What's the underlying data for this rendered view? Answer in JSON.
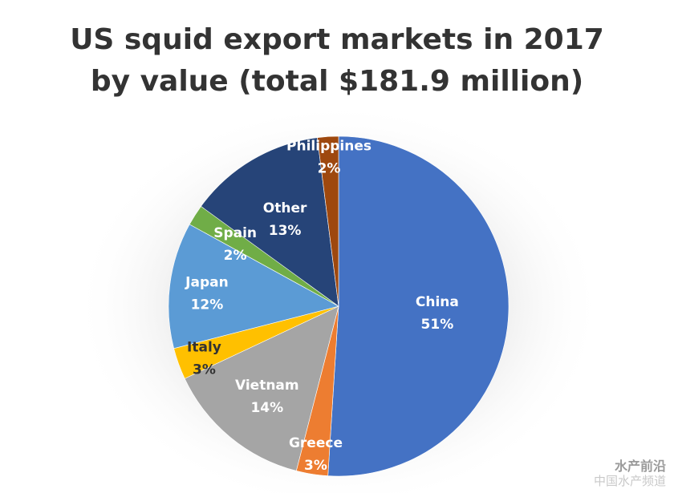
{
  "chart_data": {
    "type": "pie",
    "title_lines": [
      "US squid export markets in 2017",
      "by value (total $181.9 million)"
    ],
    "start_angle_deg": 0,
    "direction": "clockwise",
    "slices": [
      {
        "name": "China",
        "value": 51,
        "pct_label": "51%",
        "color": "#4472C4"
      },
      {
        "name": "Greece",
        "value": 3,
        "pct_label": "3%",
        "color": "#ED7D31"
      },
      {
        "name": "Vietnam",
        "value": 14,
        "pct_label": "14%",
        "color": "#A5A5A5"
      },
      {
        "name": "Italy",
        "value": 3,
        "pct_label": "3%",
        "color": "#FFC000"
      },
      {
        "name": "Japan",
        "value": 12,
        "pct_label": "12%",
        "color": "#5B9BD5"
      },
      {
        "name": "Spain",
        "value": 2,
        "pct_label": "2%",
        "color": "#70AD47"
      },
      {
        "name": "Other",
        "value": 13,
        "pct_label": "13%",
        "color": "#264478"
      },
      {
        "name": "Philippines",
        "value": 2,
        "pct_label": "2%",
        "color": "#9E480E"
      }
    ]
  },
  "watermark": {
    "line1": "水产前沿",
    "line2": "中国水产频道"
  }
}
